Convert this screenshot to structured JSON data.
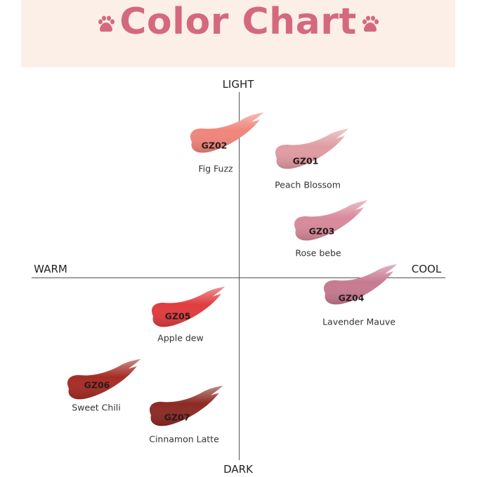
{
  "header": {
    "title": "Color Chart",
    "accent": "#d4697d",
    "background": "#fcefe8",
    "icon": "paw-icon"
  },
  "axes": {
    "top": "LIGHT",
    "bottom": "DARK",
    "left": "WARM",
    "right": "COOL"
  },
  "swatches": [
    {
      "code": "GZ02",
      "name": "Fig Fuzz",
      "color": "#f0857b"
    },
    {
      "code": "GZ01",
      "name": "Peach Blossom",
      "color": "#e09ca2"
    },
    {
      "code": "GZ03",
      "name": "Rose bebe",
      "color": "#d88a9c"
    },
    {
      "code": "GZ04",
      "name": "Lavender Mauve",
      "color": "#c77a90"
    },
    {
      "code": "GZ05",
      "name": "Apple dew",
      "color": "#e03c3e"
    },
    {
      "code": "GZ06",
      "name": "Sweet Chili",
      "color": "#a52c24"
    },
    {
      "code": "GZ07",
      "name": "Cinnamon Latte",
      "color": "#8c2a24"
    }
  ]
}
